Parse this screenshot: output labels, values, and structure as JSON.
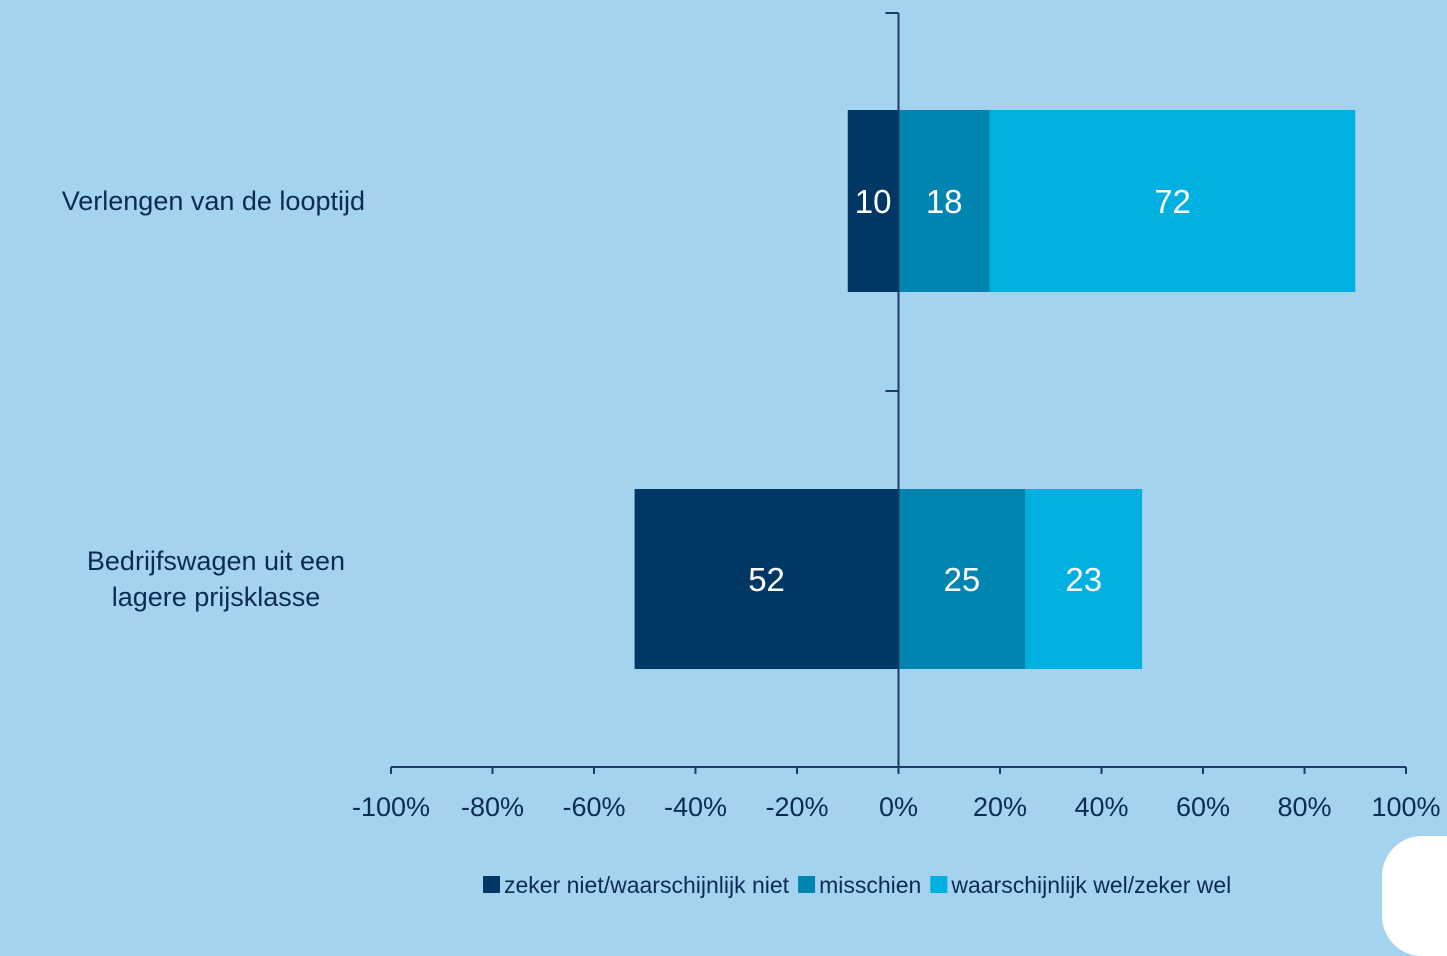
{
  "chart_data": {
    "type": "bar",
    "orientation": "horizontal",
    "stacked": "diverging",
    "categories": [
      "Verlengen van de looptijd",
      "Bedrijfswagen uit een lagere prijsklasse"
    ],
    "category_lines": [
      [
        "Verlengen van de looptijd"
      ],
      [
        "Bedrijfswagen uit een",
        "lagere prijsklasse"
      ]
    ],
    "series": [
      {
        "name": "zeker niet/waarschijnlijk niet",
        "values": [
          10,
          52
        ],
        "direction": "negative",
        "color": "#003764"
      },
      {
        "name": "misschien",
        "values": [
          18,
          25
        ],
        "direction": "positive",
        "color": "#0085b0"
      },
      {
        "name": "waarschijnlijk wel/zeker wel",
        "values": [
          72,
          23
        ],
        "direction": "positive",
        "color": "#00b0e0"
      }
    ],
    "xlim": [
      -100,
      100
    ],
    "xticks": [
      -100,
      -80,
      -60,
      -40,
      -20,
      0,
      20,
      40,
      60,
      80,
      100
    ],
    "xtick_labels": [
      "-100%",
      "-80%",
      "-60%",
      "-40%",
      "-20%",
      "0%",
      "20%",
      "40%",
      "60%",
      "80%",
      "100%"
    ],
    "grid": false,
    "legend_position": "bottom",
    "colors": {
      "background": "#a3d3ef",
      "axis": "#1f3a64",
      "text": "#0b2a55",
      "bar_label": "#ffffff"
    }
  }
}
